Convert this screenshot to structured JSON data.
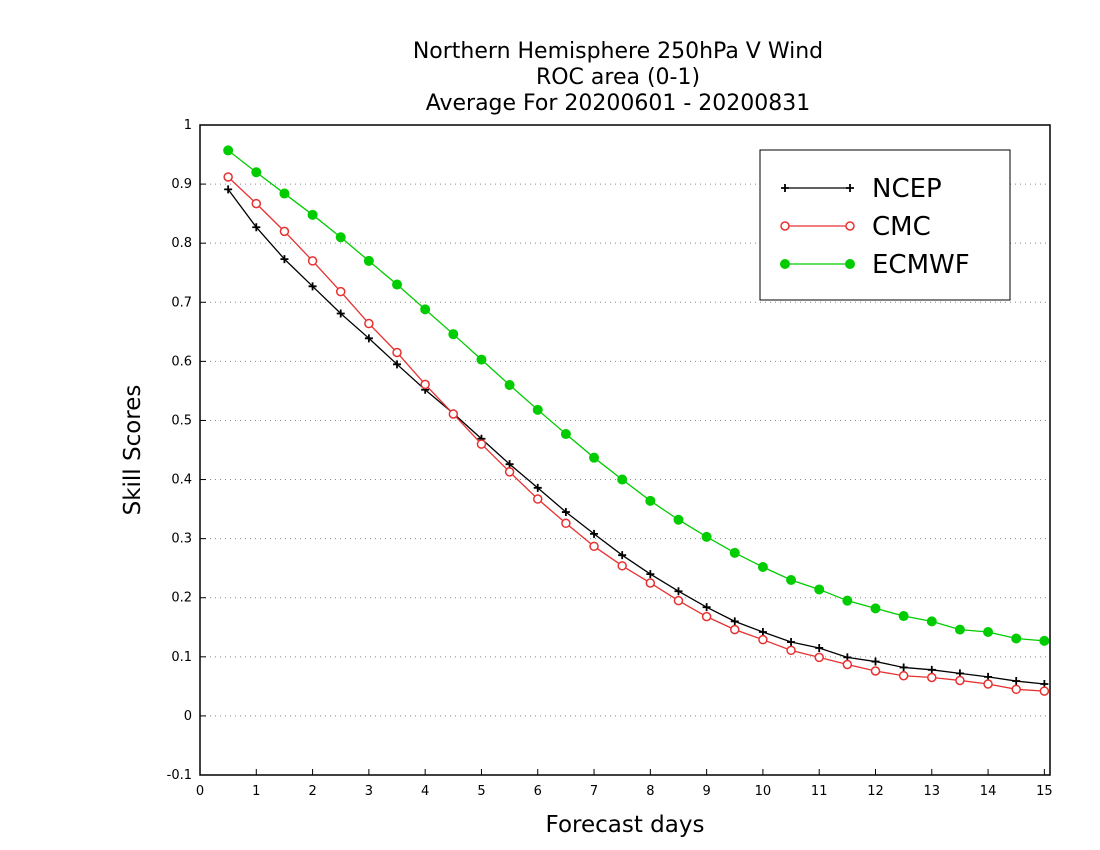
{
  "chart_data": {
    "type": "line",
    "title": [
      "Northern Hemisphere 250hPa V Wind",
      "ROC area (0-1)",
      "Average For 20200601 - 20200831"
    ],
    "xlabel": "Forecast days",
    "ylabel": "Skill Scores",
    "xlim": [
      0,
      15.1
    ],
    "ylim": [
      -0.1,
      1
    ],
    "xticks": [
      "0",
      "1",
      "2",
      "3",
      "4",
      "5",
      "6",
      "7",
      "8",
      "9",
      "10",
      "11",
      "12",
      "13",
      "14",
      "15"
    ],
    "yticks": [
      "-0.1",
      "0",
      "0.1",
      "0.2",
      "0.3",
      "0.4",
      "0.5",
      "0.6",
      "0.7",
      "0.8",
      "0.9",
      "1"
    ],
    "grid": "horizontal-dotted",
    "legend_position": "top-right",
    "x": [
      0.5,
      1,
      1.5,
      2,
      2.5,
      3,
      3.5,
      4,
      4.5,
      5,
      5.5,
      6,
      6.5,
      7,
      7.5,
      8,
      8.5,
      9,
      9.5,
      10,
      10.5,
      11,
      11.5,
      12,
      12.5,
      13,
      13.5,
      14,
      14.5,
      15
    ],
    "series": [
      {
        "name": "NCEP",
        "color": "#000000",
        "marker": "plus",
        "values": [
          0.891,
          0.827,
          0.773,
          0.727,
          0.681,
          0.639,
          0.595,
          0.552,
          0.512,
          0.469,
          0.426,
          0.386,
          0.345,
          0.308,
          0.272,
          0.24,
          0.211,
          0.184,
          0.16,
          0.142,
          0.125,
          0.115,
          0.099,
          0.092,
          0.082,
          0.078,
          0.072,
          0.066,
          0.059,
          0.054
        ]
      },
      {
        "name": "CMC",
        "color": "#e83030",
        "marker": "open-circle",
        "values": [
          0.912,
          0.867,
          0.82,
          0.77,
          0.718,
          0.664,
          0.615,
          0.561,
          0.511,
          0.46,
          0.413,
          0.367,
          0.326,
          0.287,
          0.254,
          0.225,
          0.195,
          0.168,
          0.146,
          0.129,
          0.111,
          0.099,
          0.087,
          0.076,
          0.068,
          0.065,
          0.06,
          0.054,
          0.045,
          0.042
        ]
      },
      {
        "name": "ECMWF",
        "color": "#00cc00",
        "marker": "filled-circle",
        "values": [
          0.957,
          0.92,
          0.884,
          0.848,
          0.81,
          0.77,
          0.73,
          0.688,
          0.646,
          0.603,
          0.56,
          0.518,
          0.477,
          0.437,
          0.4,
          0.364,
          0.332,
          0.303,
          0.276,
          0.252,
          0.23,
          0.214,
          0.195,
          0.182,
          0.169,
          0.16,
          0.146,
          0.142,
          0.131,
          0.127
        ]
      }
    ]
  }
}
